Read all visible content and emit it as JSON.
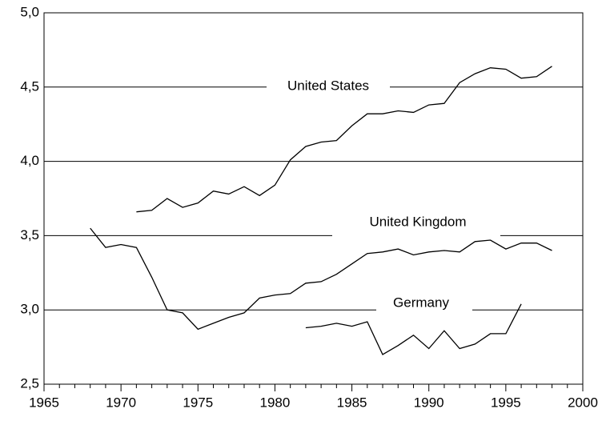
{
  "chart_data": {
    "type": "line",
    "series": [
      {
        "name": "United States",
        "color": "#000000",
        "x": [
          1971,
          1972,
          1973,
          1974,
          1975,
          1976,
          1977,
          1978,
          1979,
          1980,
          1981,
          1982,
          1983,
          1984,
          1985,
          1986,
          1987,
          1988,
          1989,
          1990,
          1991,
          1992,
          1993,
          1994,
          1995,
          1996,
          1997,
          1998
        ],
        "values": [
          3.66,
          3.67,
          3.75,
          3.69,
          3.72,
          3.8,
          3.78,
          3.83,
          3.77,
          3.84,
          4.01,
          4.1,
          4.13,
          4.14,
          4.24,
          4.32,
          4.32,
          4.34,
          4.33,
          4.38,
          4.39,
          4.53,
          4.59,
          4.63,
          4.62,
          4.56,
          4.57,
          4.64
        ]
      },
      {
        "name": "United Kingdom",
        "color": "#000000",
        "x": [
          1968,
          1969,
          1970,
          1971,
          1972,
          1973,
          1974,
          1975,
          1976,
          1977,
          1978,
          1979,
          1980,
          1981,
          1982,
          1983,
          1984,
          1985,
          1986,
          1987,
          1988,
          1989,
          1990,
          1991,
          1992,
          1993,
          1994,
          1995,
          1996,
          1997,
          1998
        ],
        "values": [
          3.55,
          3.42,
          3.44,
          3.42,
          3.22,
          3.0,
          2.98,
          2.87,
          2.91,
          2.95,
          2.98,
          3.08,
          3.1,
          3.11,
          3.18,
          3.19,
          3.24,
          3.31,
          3.38,
          3.39,
          3.41,
          3.37,
          3.39,
          3.4,
          3.39,
          3.46,
          3.47,
          3.41,
          3.45,
          3.45,
          3.4
        ]
      },
      {
        "name": "Germany",
        "color": "#000000",
        "x": [
          1982,
          1983,
          1984,
          1985,
          1986,
          1987,
          1988,
          1989,
          1990,
          1991,
          1992,
          1993,
          1994,
          1995,
          1996
        ],
        "values": [
          2.88,
          2.89,
          2.91,
          2.89,
          2.92,
          2.7,
          2.76,
          2.83,
          2.74,
          2.86,
          2.74,
          2.77,
          2.84,
          2.84,
          3.04
        ]
      }
    ],
    "xlim": [
      1965,
      2000
    ],
    "xticks": [
      1965,
      1970,
      1975,
      1980,
      1985,
      1990,
      1995,
      2000
    ],
    "xminorticks": [
      1966,
      1967,
      1968,
      1969,
      1971,
      1972,
      1973,
      1974,
      1976,
      1977,
      1978,
      1979,
      1981,
      1982,
      1983,
      1984,
      1986,
      1987,
      1988,
      1989,
      1991,
      1992,
      1993,
      1994,
      1996,
      1997,
      1998,
      1999
    ],
    "ylim": [
      2.5,
      5.0
    ],
    "yticks": [
      {
        "value": 2.5,
        "label": "2,5"
      },
      {
        "value": 3.0,
        "label": "3,0"
      },
      {
        "value": 3.5,
        "label": "3,5"
      },
      {
        "value": 4.0,
        "label": "4,0"
      },
      {
        "value": 4.5,
        "label": "4,5"
      },
      {
        "value": 5.0,
        "label": "5,0"
      }
    ],
    "grid": true
  }
}
